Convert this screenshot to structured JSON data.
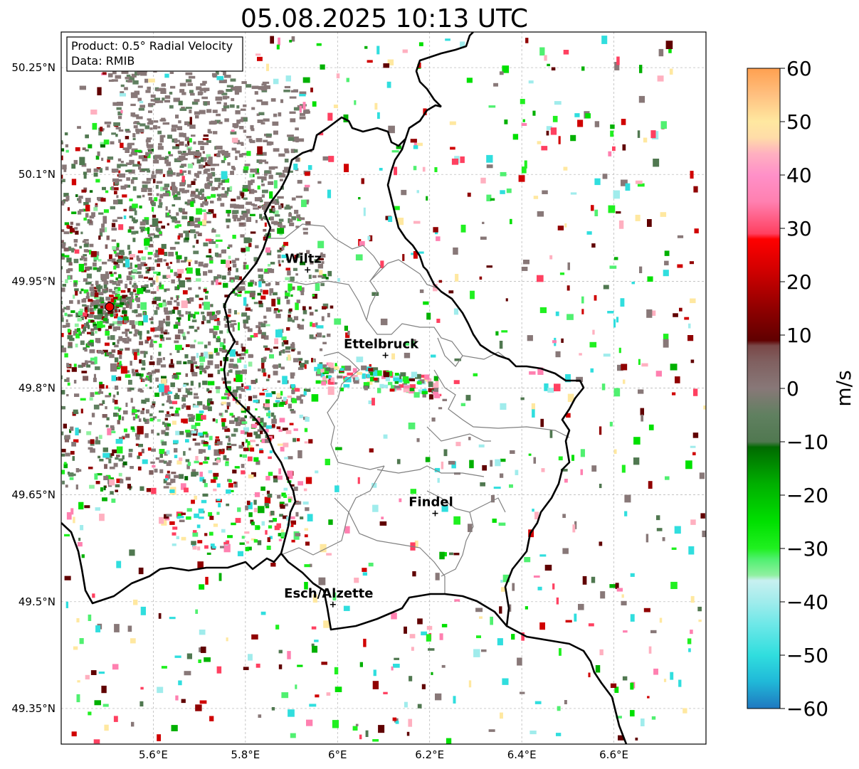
{
  "title": "05.08.2025 10:13 UTC",
  "info_box": {
    "product": "Product: 0.5° Radial Velocity",
    "source": "Data: RMIB"
  },
  "map": {
    "lon_range": [
      5.4,
      6.8
    ],
    "lat_range": [
      49.3,
      50.3
    ],
    "lon_ticks": [
      {
        "value": 5.6,
        "label": "5.6°E"
      },
      {
        "value": 5.8,
        "label": "5.8°E"
      },
      {
        "value": 6.0,
        "label": "6°E"
      },
      {
        "value": 6.2,
        "label": "6.2°E"
      },
      {
        "value": 6.4,
        "label": "6.4°E"
      },
      {
        "value": 6.6,
        "label": "6.6°E"
      }
    ],
    "lat_ticks": [
      {
        "value": 50.25,
        "label": "50.25°N"
      },
      {
        "value": 50.1,
        "label": "50.1°N"
      },
      {
        "value": 49.95,
        "label": "49.95°N"
      },
      {
        "value": 49.8,
        "label": "49.8°N"
      },
      {
        "value": 49.65,
        "label": "49.65°N"
      },
      {
        "value": 49.5,
        "label": "49.5°N"
      },
      {
        "value": 49.35,
        "label": "49.35°N"
      }
    ],
    "gridlines": true,
    "radar_site": {
      "lon": 5.505,
      "lat": 49.914,
      "color": "#ee0000"
    },
    "cities": [
      {
        "name": "Wiltz",
        "lon": 5.935,
        "lat": 49.966
      },
      {
        "name": "Ettelbruck",
        "lon": 6.104,
        "lat": 49.846
      },
      {
        "name": "Findel",
        "lon": 6.212,
        "lat": 49.624
      },
      {
        "name": "Esch/Alzette",
        "lon": 5.99,
        "lat": 49.496
      }
    ]
  },
  "colorbar": {
    "label": "m/s",
    "min": -60,
    "max": 60,
    "ticks": [
      {
        "value": 60,
        "label": "60"
      },
      {
        "value": 50,
        "label": "50"
      },
      {
        "value": 40,
        "label": "40"
      },
      {
        "value": 30,
        "label": "30"
      },
      {
        "value": 20,
        "label": "20"
      },
      {
        "value": 10,
        "label": "10"
      },
      {
        "value": 0,
        "label": "0"
      },
      {
        "value": -10,
        "label": "−10"
      },
      {
        "value": -20,
        "label": "−20"
      },
      {
        "value": -30,
        "label": "−30"
      },
      {
        "value": -40,
        "label": "−40"
      },
      {
        "value": -50,
        "label": "−50"
      },
      {
        "value": -60,
        "label": "−60"
      }
    ],
    "color_stops": [
      {
        "value": -60,
        "color": "#1f78c0"
      },
      {
        "value": -55,
        "color": "#20b8d8"
      },
      {
        "value": -50,
        "color": "#30dede"
      },
      {
        "value": -44,
        "color": "#70e8e8"
      },
      {
        "value": -40,
        "color": "#a0ecec"
      },
      {
        "value": -36,
        "color": "#c8f0f0"
      },
      {
        "value": -35,
        "color": "#90f0a0"
      },
      {
        "value": -32,
        "color": "#50f070"
      },
      {
        "value": -30,
        "color": "#20f020"
      },
      {
        "value": -25,
        "color": "#00e000"
      },
      {
        "value": -18,
        "color": "#00b000"
      },
      {
        "value": -11,
        "color": "#006a00"
      },
      {
        "value": -10,
        "color": "#507850"
      },
      {
        "value": -5,
        "color": "#608060"
      },
      {
        "value": 0,
        "color": "#887878"
      },
      {
        "value": 5,
        "color": "#806060"
      },
      {
        "value": 8,
        "color": "#7a4848"
      },
      {
        "value": 9,
        "color": "#600000"
      },
      {
        "value": 15,
        "color": "#900000"
      },
      {
        "value": 22,
        "color": "#d00000"
      },
      {
        "value": 28,
        "color": "#ff0000"
      },
      {
        "value": 29,
        "color": "#ff4060"
      },
      {
        "value": 35,
        "color": "#ff80b0"
      },
      {
        "value": 40,
        "color": "#ff90c8"
      },
      {
        "value": 44,
        "color": "#ffb0c0"
      },
      {
        "value": 47,
        "color": "#ffdca8"
      },
      {
        "value": 50,
        "color": "#ffe8a0"
      },
      {
        "value": 55,
        "color": "#ffc080"
      },
      {
        "value": 60,
        "color": "#ffa050"
      }
    ]
  }
}
